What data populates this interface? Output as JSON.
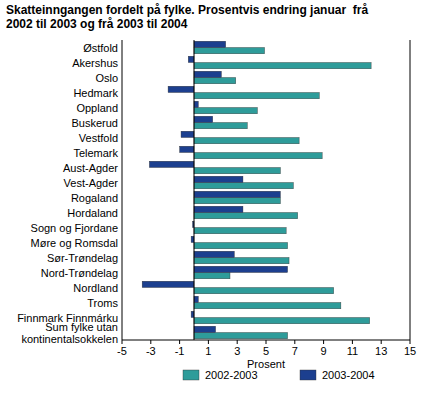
{
  "chart_data": {
    "type": "bar",
    "orientation": "horizontal",
    "title": "Skatteinngangen fordelt på fylke. Prosentvis endring januar  frå\n2002 til 2003 og frå 2003 til 2004",
    "x_label": "Prosent",
    "categories": [
      "Østfold",
      "Akershus",
      "Oslo",
      "Hedmark",
      "Oppland",
      "Buskerud",
      "Vestfold",
      "Telemark",
      "Aust-Agder",
      "Vest-Agder",
      "Rogaland",
      "Hordaland",
      "Sogn og Fjordane",
      "Møre og Romsdal",
      "Sør-Trøndelag",
      "Nord-Trøndelag",
      "Nordland",
      "Troms",
      "Finnmark Finnmárku",
      "Sum fylke utan\nkontinentalsokkelen"
    ],
    "series": [
      {
        "name": "2002-2003",
        "color": "#2e9c9a",
        "values": [
          4.9,
          12.3,
          2.9,
          8.7,
          4.4,
          3.7,
          7.3,
          8.9,
          6.0,
          6.9,
          6.0,
          7.2,
          6.4,
          6.5,
          6.6,
          2.5,
          9.7,
          10.2,
          12.2,
          6.5
        ]
      },
      {
        "name": "2003-2004",
        "color": "#1c3f8f",
        "values": [
          2.2,
          -0.4,
          1.9,
          -1.8,
          0.3,
          1.3,
          -0.9,
          -1.0,
          -3.1,
          3.4,
          6.0,
          3.4,
          -0.1,
          -0.2,
          2.8,
          6.5,
          -3.6,
          0.3,
          -0.2,
          1.5
        ]
      }
    ],
    "xlim": [
      -5,
      15
    ],
    "xticks": [
      -5,
      -3,
      -1,
      1,
      3,
      5,
      7,
      9,
      11,
      13,
      15
    ],
    "grid": false,
    "legend": "bottom"
  }
}
